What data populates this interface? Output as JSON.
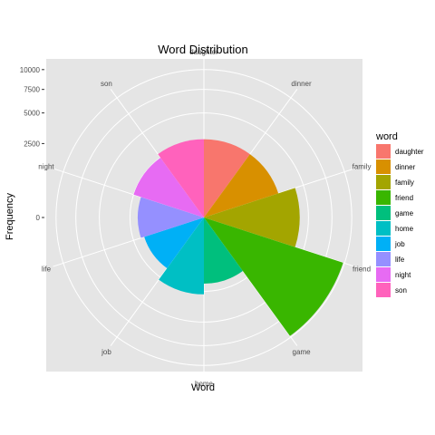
{
  "chart_data": {
    "type": "bar",
    "coord": "polar",
    "title": "Word Distribution",
    "xlabel": "Word",
    "ylabel": "Frequency",
    "categories": [
      "daughter",
      "dinner",
      "family",
      "friend",
      "game",
      "home",
      "job",
      "life",
      "night",
      "son"
    ],
    "values": [
      2800,
      2800,
      4200,
      9800,
      2000,
      2700,
      1800,
      2000,
      2500,
      2800
    ],
    "colors": [
      "#F8766D",
      "#D89000",
      "#A3A500",
      "#39B600",
      "#00BF7D",
      "#00BFC4",
      "#00B0F6",
      "#9590FF",
      "#E76BF3",
      "#FF62BC"
    ],
    "yticks": [
      0,
      2500,
      5000,
      7500,
      10000
    ],
    "ytick_labels": [
      "0",
      "2500",
      "5000",
      "7500",
      "10000"
    ],
    "ylim": [
      0,
      11500
    ],
    "legend_title": "word",
    "legend_position": "right",
    "grid": true,
    "background": "#E5E5E5"
  }
}
